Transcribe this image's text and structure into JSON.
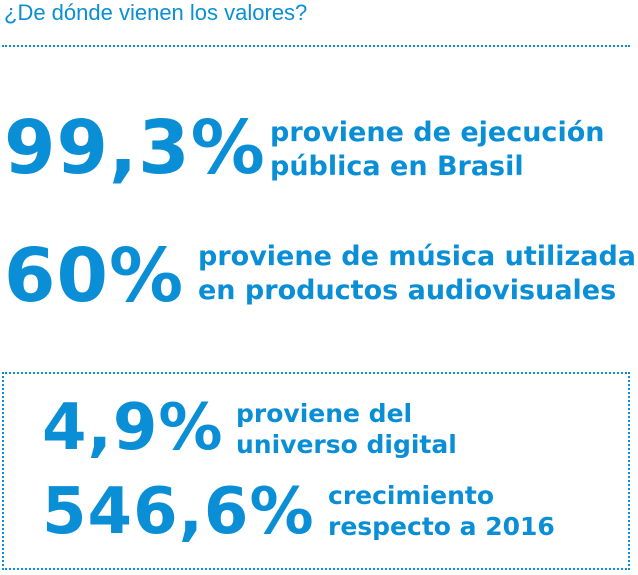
{
  "header": {
    "title": "¿De dónde vienen los valores?"
  },
  "stats": [
    {
      "value": "99,3%",
      "line1": "proviene de ejecución",
      "line2": "pública en Brasil"
    },
    {
      "value": "60%",
      "line1": "proviene de música utilizada",
      "line2": "en productos audiovisuales"
    }
  ],
  "highlight": [
    {
      "value": "4,9%",
      "line1": "proviene del",
      "line2": "universo digital"
    },
    {
      "value": "546,6%",
      "line1": "crecimiento",
      "line2": "respecto a 2016"
    }
  ],
  "colors": {
    "accent": "#0a8fd6",
    "background": "#ffffff"
  }
}
